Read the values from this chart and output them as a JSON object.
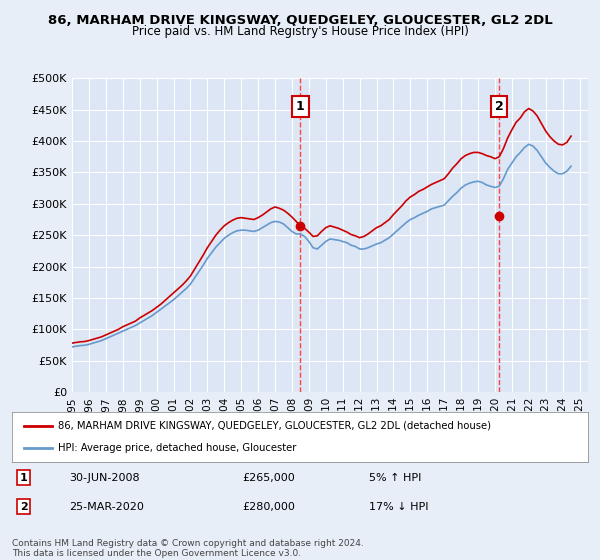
{
  "title": "86, MARHAM DRIVE KINGSWAY, QUEDGELEY, GLOUCESTER, GL2 2DL",
  "subtitle": "Price paid vs. HM Land Registry's House Price Index (HPI)",
  "background_color": "#e8eef8",
  "plot_bg_color": "#dce6f5",
  "ylim": [
    0,
    500000
  ],
  "yticks": [
    0,
    50000,
    100000,
    150000,
    200000,
    250000,
    300000,
    350000,
    400000,
    450000,
    500000
  ],
  "ytick_labels": [
    "£0",
    "£50K",
    "£100K",
    "£150K",
    "£200K",
    "£250K",
    "£300K",
    "£350K",
    "£400K",
    "£450K",
    "£500K"
  ],
  "xlim_start": 1995.0,
  "xlim_end": 2025.5,
  "xticks": [
    1995,
    1996,
    1997,
    1998,
    1999,
    2000,
    2001,
    2002,
    2003,
    2004,
    2005,
    2006,
    2007,
    2008,
    2009,
    2010,
    2011,
    2012,
    2013,
    2014,
    2015,
    2016,
    2017,
    2018,
    2019,
    2020,
    2021,
    2022,
    2023,
    2024,
    2025
  ],
  "grid_color": "#ffffff",
  "red_line_color": "#cc0000",
  "blue_line_color": "#6699cc",
  "sale_marker_color": "#cc0000",
  "vline_color": "#ff4444",
  "annotation_box_color": "#ffffff",
  "annotation_box_edge": "#cc0000",
  "sale1_x": 2008.5,
  "sale1_y": 265000,
  "sale1_label": "1",
  "sale1_date": "30-JUN-2008",
  "sale1_price": "£265,000",
  "sale1_hpi": "5% ↑ HPI",
  "sale2_x": 2020.25,
  "sale2_y": 280000,
  "sale2_label": "2",
  "sale2_date": "25-MAR-2020",
  "sale2_price": "£280,000",
  "sale2_hpi": "17% ↓ HPI",
  "legend_line1": "86, MARHAM DRIVE KINGSWAY, QUEDGELEY, GLOUCESTER, GL2 2DL (detached house)",
  "legend_line2": "HPI: Average price, detached house, Gloucester",
  "footer": "Contains HM Land Registry data © Crown copyright and database right 2024.\nThis data is licensed under the Open Government Licence v3.0.",
  "hpi_years": [
    1995,
    1995.25,
    1995.5,
    1995.75,
    1996,
    1996.25,
    1996.5,
    1996.75,
    1997,
    1997.25,
    1997.5,
    1997.75,
    1998,
    1998.25,
    1998.5,
    1998.75,
    1999,
    1999.25,
    1999.5,
    1999.75,
    2000,
    2000.25,
    2000.5,
    2000.75,
    2001,
    2001.25,
    2001.5,
    2001.75,
    2002,
    2002.25,
    2002.5,
    2002.75,
    2003,
    2003.25,
    2003.5,
    2003.75,
    2004,
    2004.25,
    2004.5,
    2004.75,
    2005,
    2005.25,
    2005.5,
    2005.75,
    2006,
    2006.25,
    2006.5,
    2006.75,
    2007,
    2007.25,
    2007.5,
    2007.75,
    2008,
    2008.25,
    2008.5,
    2008.75,
    2009,
    2009.25,
    2009.5,
    2009.75,
    2010,
    2010.25,
    2010.5,
    2010.75,
    2011,
    2011.25,
    2011.5,
    2011.75,
    2012,
    2012.25,
    2012.5,
    2012.75,
    2013,
    2013.25,
    2013.5,
    2013.75,
    2014,
    2014.25,
    2014.5,
    2014.75,
    2015,
    2015.25,
    2015.5,
    2015.75,
    2016,
    2016.25,
    2016.5,
    2016.75,
    2017,
    2017.25,
    2017.5,
    2017.75,
    2018,
    2018.25,
    2018.5,
    2018.75,
    2019,
    2019.25,
    2019.5,
    2019.75,
    2020,
    2020.25,
    2020.5,
    2020.75,
    2021,
    2021.25,
    2021.5,
    2021.75,
    2022,
    2022.25,
    2022.5,
    2022.75,
    2023,
    2023.25,
    2023.5,
    2023.75,
    2024,
    2024.25,
    2024.5
  ],
  "hpi_values": [
    72000,
    73000,
    74000,
    74500,
    76000,
    78000,
    80000,
    82000,
    85000,
    88000,
    91000,
    94000,
    97000,
    100000,
    103000,
    106000,
    110000,
    114000,
    118000,
    122000,
    127000,
    132000,
    137000,
    142000,
    147000,
    153000,
    159000,
    165000,
    172000,
    182000,
    192000,
    202000,
    213000,
    222000,
    231000,
    238000,
    245000,
    250000,
    254000,
    257000,
    258000,
    258000,
    257000,
    256000,
    258000,
    262000,
    266000,
    270000,
    272000,
    271000,
    268000,
    262000,
    256000,
    252000,
    252000,
    248000,
    240000,
    230000,
    228000,
    234000,
    240000,
    244000,
    243000,
    242000,
    240000,
    238000,
    234000,
    232000,
    228000,
    228000,
    230000,
    233000,
    236000,
    238000,
    242000,
    246000,
    252000,
    258000,
    264000,
    270000,
    275000,
    278000,
    282000,
    285000,
    288000,
    292000,
    294000,
    296000,
    298000,
    305000,
    312000,
    318000,
    325000,
    330000,
    333000,
    335000,
    336000,
    334000,
    330000,
    328000,
    326000,
    328000,
    340000,
    355000,
    365000,
    375000,
    382000,
    390000,
    395000,
    392000,
    385000,
    375000,
    365000,
    358000,
    352000,
    348000,
    348000,
    352000,
    360000
  ],
  "red_years": [
    1995,
    1995.25,
    1995.5,
    1995.75,
    1996,
    1996.25,
    1996.5,
    1996.75,
    1997,
    1997.25,
    1997.5,
    1997.75,
    1998,
    1998.25,
    1998.5,
    1998.75,
    1999,
    1999.25,
    1999.5,
    1999.75,
    2000,
    2000.25,
    2000.5,
    2000.75,
    2001,
    2001.25,
    2001.5,
    2001.75,
    2002,
    2002.25,
    2002.5,
    2002.75,
    2003,
    2003.25,
    2003.5,
    2003.75,
    2004,
    2004.25,
    2004.5,
    2004.75,
    2005,
    2005.25,
    2005.5,
    2005.75,
    2006,
    2006.25,
    2006.5,
    2006.75,
    2007,
    2007.25,
    2007.5,
    2007.75,
    2008,
    2008.25,
    2008.5,
    2008.75,
    2009,
    2009.25,
    2009.5,
    2009.75,
    2010,
    2010.25,
    2010.5,
    2010.75,
    2011,
    2011.25,
    2011.5,
    2011.75,
    2012,
    2012.25,
    2012.5,
    2012.75,
    2013,
    2013.25,
    2013.5,
    2013.75,
    2014,
    2014.25,
    2014.5,
    2014.75,
    2015,
    2015.25,
    2015.5,
    2015.75,
    2016,
    2016.25,
    2016.5,
    2016.75,
    2017,
    2017.25,
    2017.5,
    2017.75,
    2018,
    2018.25,
    2018.5,
    2018.75,
    2019,
    2019.25,
    2019.5,
    2019.75,
    2020,
    2020.25,
    2020.5,
    2020.75,
    2021,
    2021.25,
    2021.5,
    2021.75,
    2022,
    2022.25,
    2022.5,
    2022.75,
    2023,
    2023.25,
    2023.5,
    2023.75,
    2024,
    2024.25,
    2024.5
  ],
  "red_values": [
    78000,
    79000,
    80000,
    80500,
    82000,
    84000,
    86000,
    88000,
    91000,
    94000,
    97000,
    100000,
    104000,
    107000,
    110000,
    113000,
    118000,
    122000,
    126000,
    130000,
    135000,
    140000,
    146000,
    152000,
    158000,
    164000,
    170000,
    177000,
    185000,
    196000,
    207000,
    218000,
    230000,
    240000,
    250000,
    258000,
    265000,
    270000,
    274000,
    277000,
    278000,
    277000,
    276000,
    275000,
    278000,
    282000,
    287000,
    292000,
    295000,
    293000,
    290000,
    285000,
    279000,
    272000,
    265000,
    261000,
    255000,
    248000,
    249000,
    256000,
    262000,
    265000,
    263000,
    261000,
    258000,
    255000,
    251000,
    249000,
    246000,
    248000,
    252000,
    257000,
    262000,
    265000,
    270000,
    275000,
    283000,
    290000,
    297000,
    305000,
    311000,
    315000,
    320000,
    323000,
    327000,
    331000,
    334000,
    337000,
    340000,
    348000,
    357000,
    364000,
    372000,
    377000,
    380000,
    382000,
    382000,
    380000,
    377000,
    375000,
    372000,
    375000,
    388000,
    405000,
    418000,
    430000,
    437000,
    447000,
    452000,
    448000,
    440000,
    428000,
    416000,
    407000,
    400000,
    395000,
    394000,
    398000,
    408000
  ]
}
